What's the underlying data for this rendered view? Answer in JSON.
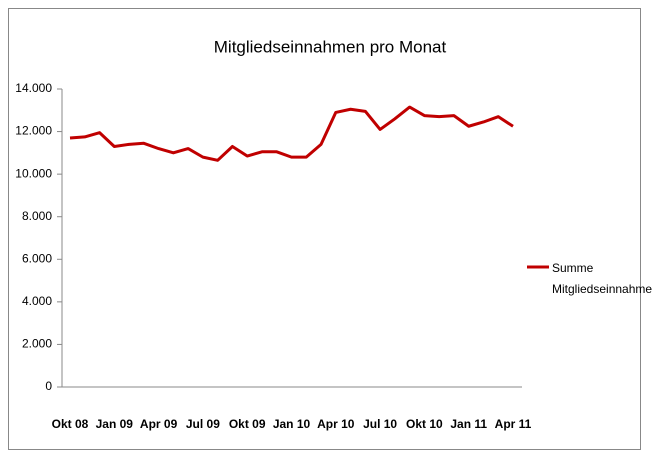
{
  "chart_data": {
    "type": "line",
    "title": "Mitgliedseinnahmen pro Monat",
    "categories": [
      "Okt 08",
      null,
      null,
      "Jan 09",
      null,
      null,
      "Apr 09",
      null,
      null,
      "Jul 09",
      null,
      null,
      "Okt 09",
      null,
      null,
      "Jan 10",
      null,
      null,
      "Apr 10",
      null,
      null,
      "Jul 10",
      null,
      null,
      "Okt 10",
      null,
      null,
      "Jan 11",
      null,
      null,
      "Apr 11"
    ],
    "series": [
      {
        "name": "Summe Mitgliedseinnahmen",
        "color": "#c00000",
        "values": [
          11700,
          11750,
          11950,
          11300,
          11400,
          11450,
          11200,
          11000,
          11200,
          10800,
          10650,
          11300,
          10850,
          11050,
          11050,
          10800,
          10800,
          11400,
          12900,
          13050,
          12950,
          12100,
          12600,
          13150,
          12750,
          12700,
          12750,
          12250,
          12450,
          12700,
          12250
        ]
      }
    ],
    "ylim": [
      0,
      14000
    ],
    "yticks": [
      0,
      {
        "value": 2000,
        "label": "2.000"
      },
      {
        "value": 4000,
        "label": "4.000"
      },
      {
        "value": 6000,
        "label": "6.000"
      },
      {
        "value": 8000,
        "label": "8.000"
      },
      {
        "value": 10000,
        "label": "10.000"
      },
      {
        "value": 12000,
        "label": "12.000"
      },
      {
        "value": 14000,
        "label": "14.000"
      }
    ],
    "legend": "right"
  }
}
